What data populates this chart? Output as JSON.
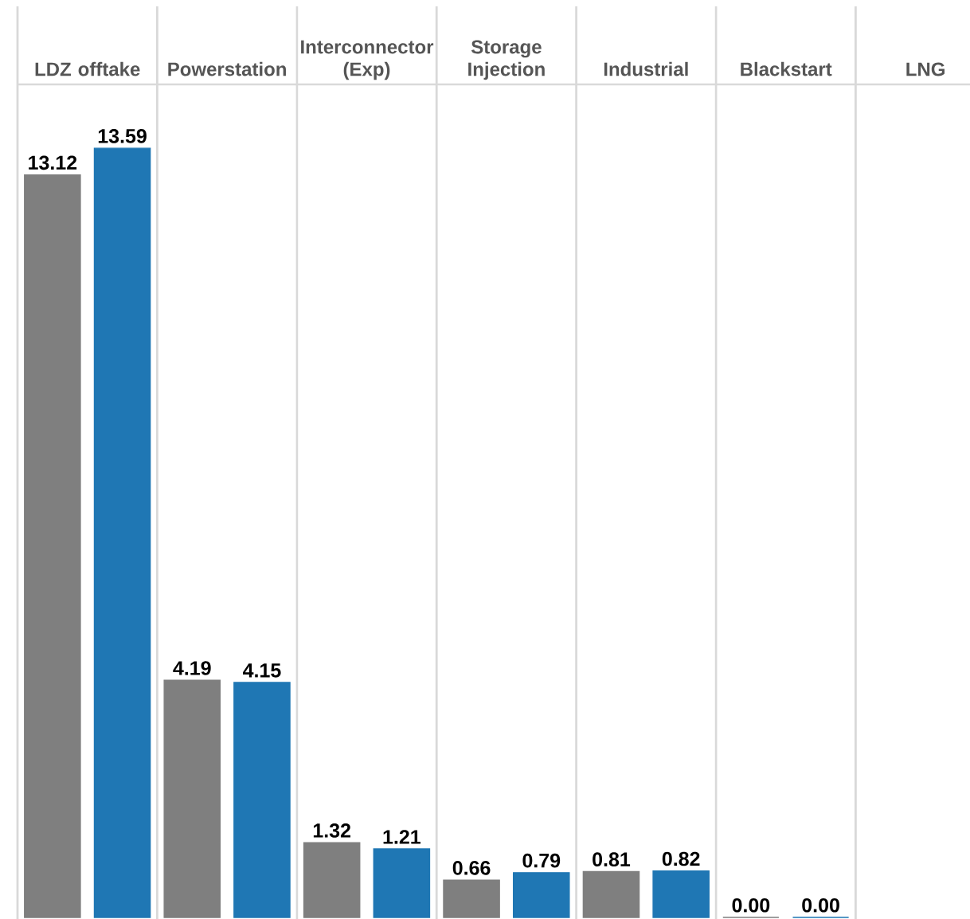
{
  "chart_data": {
    "type": "bar",
    "categories": [
      "LDZ offtake",
      "Powerstation",
      "Interconnector (Exp)",
      "Storage Injection",
      "Industrial",
      "Blackstart",
      "LNG"
    ],
    "series": [
      {
        "color": "#7f7f7f",
        "values": [
          13.12,
          4.19,
          1.32,
          0.66,
          0.81,
          0.0,
          null
        ],
        "value_labels": [
          "13.12",
          "4.19",
          "1.32",
          "0.66",
          "0.81",
          "0.00",
          null
        ]
      },
      {
        "color": "#1f77b4",
        "values": [
          13.59,
          4.15,
          1.21,
          0.79,
          0.82,
          0.0,
          null
        ],
        "value_labels": [
          "13.59",
          "4.15",
          "1.21",
          "0.79",
          "0.82",
          "0.00",
          null
        ]
      }
    ]
  }
}
